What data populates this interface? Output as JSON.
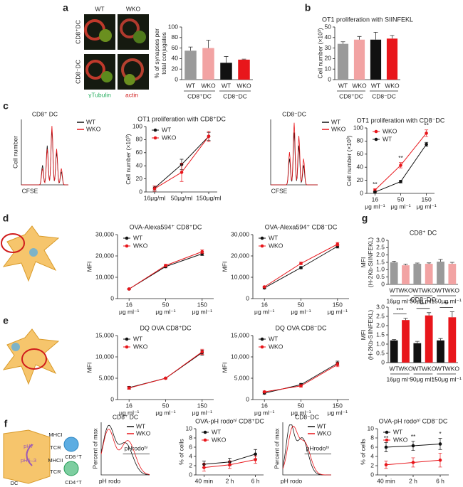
{
  "figure": {
    "panel_labels": [
      "a",
      "b",
      "c",
      "d",
      "e",
      "f",
      "g"
    ]
  },
  "microscopy": {
    "columns": [
      "WT",
      "WKO"
    ],
    "rows": [
      "CD8⁺DC",
      "CD8⁻DC"
    ],
    "stain_green": "γTubulin",
    "stain_red": "actin"
  },
  "flow_c": [
    {
      "title": "CD8⁺ DC",
      "xlabel": "CFSE",
      "ylabel": "Cell number",
      "legend": [
        "WT",
        "WKO"
      ]
    },
    {
      "title": "CD8⁻DC",
      "xlabel": "CFSE",
      "legend": [
        "WT",
        "WKO"
      ]
    }
  ],
  "flow_f": [
    {
      "title": "CD8⁺ DC",
      "xlabel": "pH rodo",
      "ylabel": "Percent of max",
      "gate": "pHrodoʰⁱ",
      "legend": [
        "WT",
        "WKO"
      ]
    },
    {
      "title": "CD8⁻DC",
      "xlabel": "pH rodo",
      "ylabel": "Percent of max",
      "gate": "pHrodoʰⁱ",
      "legend": [
        "WT",
        "WKO"
      ]
    }
  ],
  "diagram_f": {
    "labels": [
      "MHCI",
      "TCR",
      "CD8⁺T",
      "pH7",
      "pH5–3",
      "MHCII",
      "TCR",
      "CD4⁺T",
      "DC"
    ]
  },
  "chart_data": [
    {
      "type": "bar",
      "ylabel": [
        "% of synapses per",
        "total conjugates"
      ],
      "categories": [
        "WT",
        "WKO",
        "WT",
        "WKO"
      ],
      "groups": [
        "CD8⁺DC",
        "CD8⁻DC"
      ],
      "values": [
        55,
        60,
        32,
        38
      ],
      "errors": [
        7,
        15,
        12,
        1
      ],
      "colors": [
        "#9a9a9a",
        "#f2a3a3",
        "#111111",
        "#e8161b"
      ],
      "ylim": [
        0,
        100
      ],
      "yticks": [
        0,
        20,
        40,
        60,
        80,
        100
      ]
    },
    {
      "type": "bar",
      "title": "OT1 proliferation with SIINFEKL",
      "ylabel": [
        "Cell number (×10³)"
      ],
      "categories": [
        "WT",
        "WKO",
        "WT",
        "WKO"
      ],
      "groups": [
        "CD8⁺DC",
        "CD8⁻DC"
      ],
      "values": [
        34,
        38,
        38,
        39
      ],
      "errors": [
        2,
        3,
        7,
        3
      ],
      "colors": [
        "#9a9a9a",
        "#f2a3a3",
        "#111111",
        "#e8161b"
      ],
      "ylim": [
        0,
        50
      ],
      "yticks": [
        0,
        10,
        20,
        30,
        40,
        50
      ]
    },
    {
      "type": "line",
      "title": "OT1 proliferation with CD8⁺DC",
      "ylabel": [
        "Cell number (×10³)"
      ],
      "categories": [
        "16μg/ml",
        "50μg/ml",
        "150μg/ml"
      ],
      "series": [
        {
          "name": "WT",
          "color": "#111111",
          "values": [
            6,
            42,
            85
          ],
          "errors": [
            3,
            8,
            6
          ]
        },
        {
          "name": "WKO",
          "color": "#e8161b",
          "values": [
            5,
            30,
            85
          ],
          "errors": [
            4,
            14,
            8
          ]
        }
      ],
      "ylim": [
        0,
        100
      ],
      "yticks": [
        0,
        20,
        40,
        60,
        80,
        100
      ],
      "legend": "upper left"
    },
    {
      "type": "line",
      "title": "OT1 proliferation with CD8⁻DC",
      "ylabel": [
        "Cell number (×10³)"
      ],
      "categories": [
        "16",
        "50",
        "150"
      ],
      "x_unit": "μg ml⁻¹",
      "series": [
        {
          "name": "WKO",
          "color": "#e8161b",
          "values": [
            5,
            43,
            92
          ],
          "errors": [
            2,
            4,
            5
          ]
        },
        {
          "name": "WT",
          "color": "#111111",
          "values": [
            2,
            18,
            75
          ],
          "errors": [
            1,
            2,
            3
          ]
        }
      ],
      "ylim": [
        0,
        100
      ],
      "yticks": [
        0,
        20,
        40,
        60,
        80,
        100
      ],
      "legend": "upper left",
      "annotations": [
        "**",
        "**",
        "**"
      ]
    },
    {
      "type": "line",
      "title": "OVA-Alexa594⁺ CD8⁺DC",
      "ylabel": [
        "MFI"
      ],
      "categories": [
        "16",
        "50",
        "150"
      ],
      "x_unit": "μg ml⁻¹",
      "series": [
        {
          "name": "WT",
          "color": "#111111",
          "values": [
            4500,
            15000,
            21000
          ],
          "errors": [
            300,
            600,
            800
          ]
        },
        {
          "name": "WKO",
          "color": "#e8161b",
          "values": [
            4500,
            15500,
            22000
          ],
          "errors": [
            300,
            600,
            800
          ]
        }
      ],
      "ylim": [
        0,
        30000
      ],
      "yticks": [
        0,
        {
          "value": 10000,
          "label": "10,000"
        },
        {
          "value": 20000,
          "label": "20,000"
        },
        {
          "value": 30000,
          "label": "30,000"
        }
      ],
      "legend": "upper left"
    },
    {
      "type": "line",
      "title": "OVA-Alexa594⁺ CD8⁻DC",
      "ylabel": [
        "MFI"
      ],
      "categories": [
        "16",
        "50",
        "150"
      ],
      "x_unit": "μg ml⁻¹",
      "series": [
        {
          "name": "WT",
          "color": "#111111",
          "values": [
            5000,
            14500,
            24500
          ],
          "errors": [
            400,
            500,
            800
          ]
        },
        {
          "name": "WKO",
          "color": "#e8161b",
          "values": [
            5500,
            16500,
            25500
          ],
          "errors": [
            400,
            600,
            800
          ]
        }
      ],
      "ylim": [
        0,
        30000
      ],
      "yticks": [
        0,
        {
          "value": 10000,
          "label": "10,000"
        },
        {
          "value": 20000,
          "label": "20,000"
        },
        {
          "value": 30000,
          "label": "30,000"
        }
      ],
      "legend": "upper left"
    },
    {
      "type": "line",
      "title": "DQ OVA CD8⁺DC",
      "ylabel": [
        "MFI"
      ],
      "categories": [
        "16",
        "50",
        "150"
      ],
      "x_unit": "μg ml⁻¹",
      "series": [
        {
          "name": "WT",
          "color": "#111111",
          "values": [
            2800,
            5000,
            11000
          ],
          "errors": [
            300,
            200,
            600
          ]
        },
        {
          "name": "WKO",
          "color": "#e8161b",
          "values": [
            2700,
            5000,
            11200
          ],
          "errors": [
            300,
            200,
            600
          ]
        }
      ],
      "ylim": [
        0,
        15000
      ],
      "yticks": [
        0,
        {
          "value": 5000,
          "label": "5,000"
        },
        {
          "value": 10000,
          "label": "10,000"
        },
        {
          "value": 15000,
          "label": "15,000"
        }
      ],
      "legend": "upper left"
    },
    {
      "type": "line",
      "title": "DQ OVA CD8⁻DC",
      "ylabel": [
        "MFI"
      ],
      "categories": [
        "16",
        "50",
        "150"
      ],
      "x_unit": "μg ml⁻¹",
      "series": [
        {
          "name": "WT",
          "color": "#111111",
          "values": [
            1500,
            3500,
            8500
          ],
          "errors": [
            200,
            300,
            500
          ]
        },
        {
          "name": "WKO",
          "color": "#e8161b",
          "values": [
            1800,
            3200,
            8200
          ],
          "errors": [
            200,
            300,
            500
          ]
        }
      ],
      "ylim": [
        0,
        15000
      ],
      "yticks": [
        0,
        {
          "value": 5000,
          "label": "5,000"
        },
        {
          "value": 10000,
          "label": "10,000"
        },
        {
          "value": 15000,
          "label": "15,000"
        }
      ],
      "legend": "upper left"
    },
    {
      "type": "bar",
      "title": "CD8⁺ DC",
      "ylabel": [
        "MFI",
        "(H-2Kb-SIINFEKL)"
      ],
      "categories": [
        "WT",
        "WKO",
        "WT",
        "WKO",
        "WT",
        "WKO"
      ],
      "groups": [
        "16μg ml⁻¹",
        "50μg ml⁻¹",
        "150μg ml⁻¹"
      ],
      "values": [
        1.5,
        1.3,
        1.4,
        1.4,
        1.55,
        1.4
      ],
      "errors": [
        0.08,
        0.08,
        0.05,
        0.06,
        0.15,
        0.1
      ],
      "colors": [
        "#9a9a9a",
        "#f2a3a3",
        "#9a9a9a",
        "#f2a3a3",
        "#9a9a9a",
        "#f2a3a3"
      ],
      "ylim": [
        0,
        3
      ],
      "yticks": [
        0,
        0.5,
        {
          "value": 1,
          "label": "1.0"
        },
        1.5,
        {
          "value": 2,
          "label": "2.0"
        },
        2.5,
        {
          "value": 3,
          "label": "3.0"
        }
      ]
    },
    {
      "type": "bar",
      "title": "CD8⁻DC",
      "ylabel": [
        "MFI",
        "(H-2Kb-SIINFEKL)"
      ],
      "categories": [
        "WT",
        "WKO",
        "WT",
        "WKO",
        "WT",
        "WKO"
      ],
      "groups": [
        "16μg ml⁻¹",
        "50μg ml⁻¹",
        "150μg ml⁻¹"
      ],
      "values": [
        1.2,
        2.3,
        1.05,
        2.55,
        1.2,
        2.45
      ],
      "errors": [
        0.05,
        0.1,
        0.1,
        0.15,
        0.1,
        0.3
      ],
      "colors": [
        "#111111",
        "#e8161b",
        "#111111",
        "#e8161b",
        "#111111",
        "#e8161b"
      ],
      "ylim": [
        0,
        3
      ],
      "yticks": [
        0,
        0.5,
        {
          "value": 1,
          "label": "1.0"
        },
        1.5,
        {
          "value": 2,
          "label": "2.0"
        },
        2.5,
        {
          "value": 3,
          "label": "3.0"
        }
      ],
      "annotations": [
        "***",
        "***",
        "**"
      ]
    },
    {
      "type": "line",
      "title": "OVA-pH rodoʰⁱ CD8⁺DC",
      "ylabel": [
        "% of cells"
      ],
      "categories": [
        "40 min",
        "2 h",
        "6 h"
      ],
      "series": [
        {
          "name": "WT",
          "color": "#111111",
          "values": [
            2.3,
            2.8,
            4.5
          ],
          "errors": [
            0.7,
            0.8,
            1
          ]
        },
        {
          "name": "WKO",
          "color": "#e8161b",
          "values": [
            1.6,
            2.2,
            3.3
          ],
          "errors": [
            0.8,
            0.8,
            0.8
          ]
        }
      ],
      "ylim": [
        0,
        10
      ],
      "yticks": [
        0,
        2,
        4,
        6,
        8,
        10
      ],
      "legend": "upper left"
    },
    {
      "type": "line",
      "title": "OVA-pH rodoʰⁱ CD8⁻DC",
      "ylabel": [
        "% of cells"
      ],
      "categories": [
        "40 min",
        "2 h",
        "6 h"
      ],
      "series": [
        {
          "name": "WT",
          "color": "#111111",
          "values": [
            6,
            6.3,
            6.7
          ],
          "errors": [
            1,
            1,
            1.2
          ]
        },
        {
          "name": "WKO",
          "color": "#e8161b",
          "values": [
            2.2,
            2.7,
            3.2
          ],
          "errors": [
            0.8,
            1,
            1.5
          ]
        }
      ],
      "ylim": [
        0,
        10
      ],
      "yticks": [
        0,
        2,
        4,
        6,
        8,
        10
      ],
      "legend": "upper left",
      "annotations": [
        "**",
        "**",
        "*"
      ]
    }
  ]
}
